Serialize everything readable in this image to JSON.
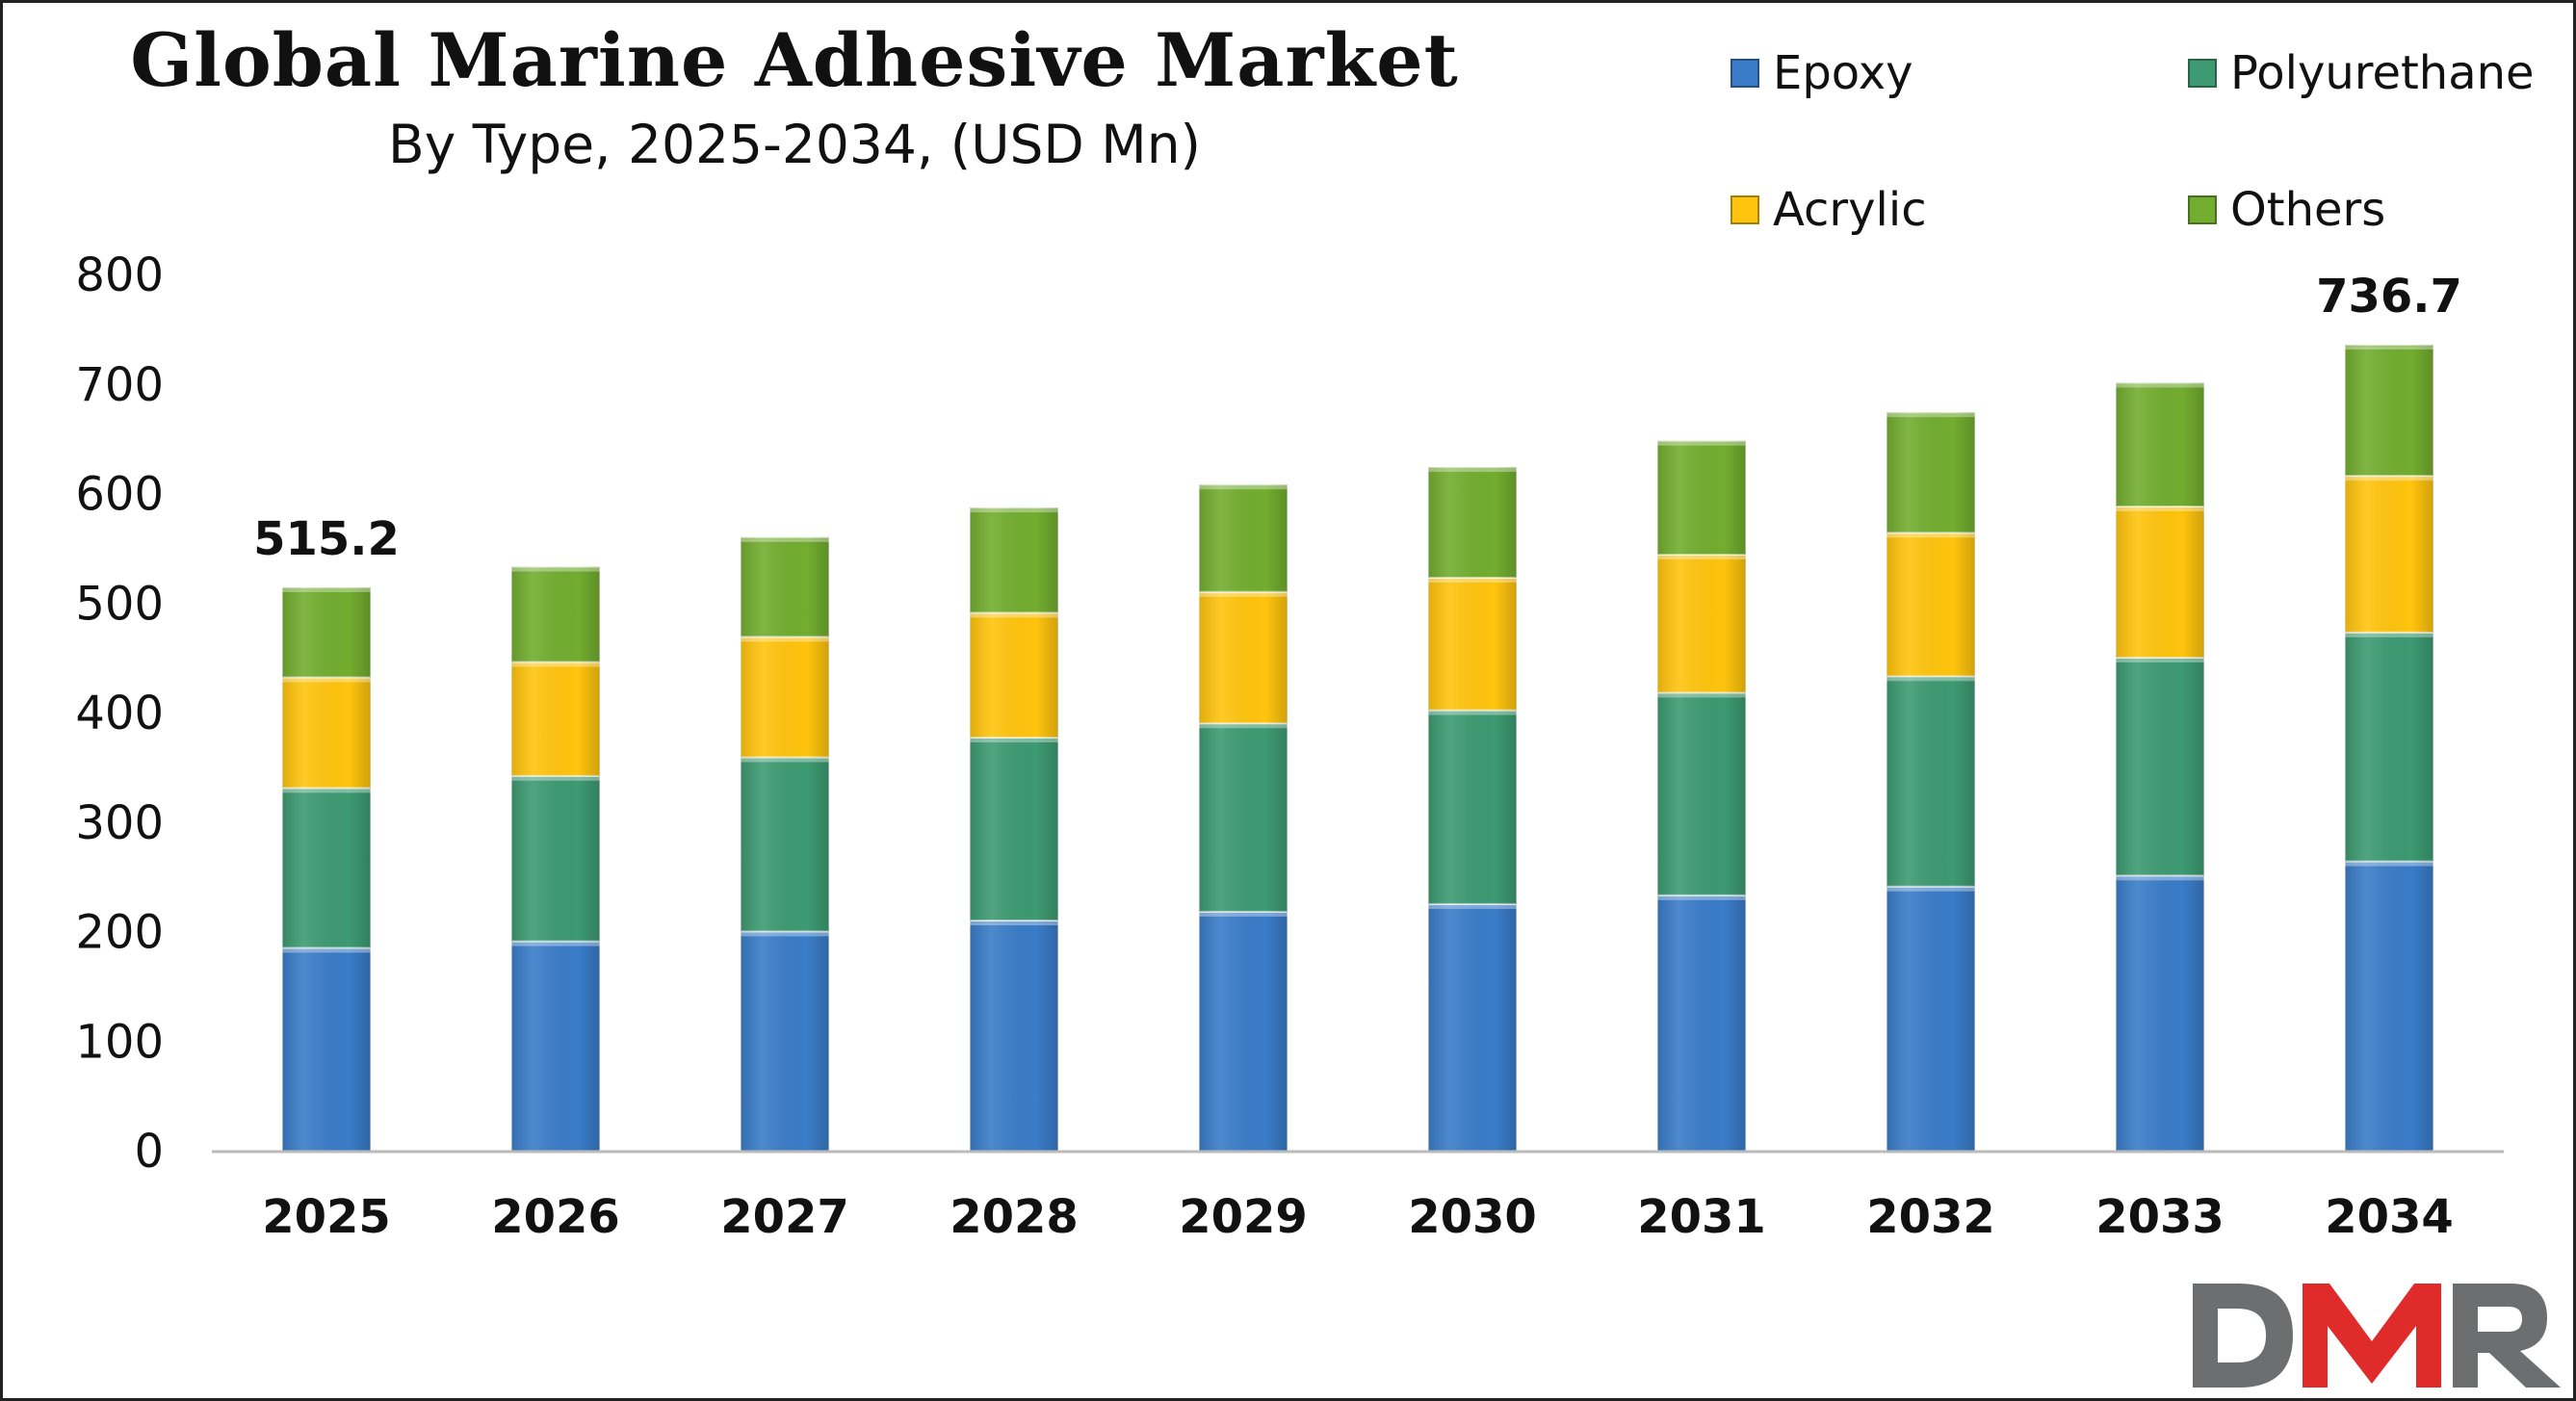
{
  "chart_data": {
    "type": "bar",
    "stacked": true,
    "title": "Global Marine Adhesive Market",
    "subtitle": "By Type, 2025-2034, (USD Mn)",
    "xlabel": "",
    "ylabel": "",
    "ylim": [
      0,
      800
    ],
    "yticks": [
      "0",
      "100",
      "200",
      "300",
      "400",
      "500",
      "600",
      "700",
      "800"
    ],
    "categories": [
      "2025",
      "2026",
      "2027",
      "2028",
      "2029",
      "2030",
      "2031",
      "2032",
      "2033",
      "2034"
    ],
    "series": [
      {
        "name": "Epoxy",
        "color": "#3a7cc8",
        "values": [
          186,
          192,
          201,
          211,
          219,
          226,
          234,
          242,
          252,
          265
        ]
      },
      {
        "name": "Polyurethane",
        "color": "#3d9a72",
        "values": [
          146,
          151,
          159,
          167,
          172,
          177,
          185,
          192,
          199,
          209
        ]
      },
      {
        "name": "Acrylic",
        "color": "#ffc40d",
        "values": [
          101,
          104,
          110,
          114,
          120,
          121,
          126,
          131,
          138,
          143
        ]
      },
      {
        "name": "Others",
        "color": "#72ad2f",
        "values": [
          82.2,
          87,
          91,
          96,
          98,
          101,
          104,
          110,
          113,
          119.7
        ]
      }
    ],
    "data_labels": [
      {
        "category": "2025",
        "text": "515.2"
      },
      {
        "category": "2034",
        "text": "736.7"
      }
    ],
    "grid": false,
    "legend_position": "top-right"
  },
  "legend": {
    "items": [
      {
        "label": "Epoxy",
        "color": "#3a7cc8"
      },
      {
        "label": "Polyurethane",
        "color": "#3d9a72"
      },
      {
        "label": "Acrylic",
        "color": "#ffc40d"
      },
      {
        "label": "Others",
        "color": "#72ad2f"
      }
    ]
  },
  "logo": {
    "text": "DMR",
    "colors": [
      "#6d6e70",
      "#e02b2b"
    ]
  }
}
